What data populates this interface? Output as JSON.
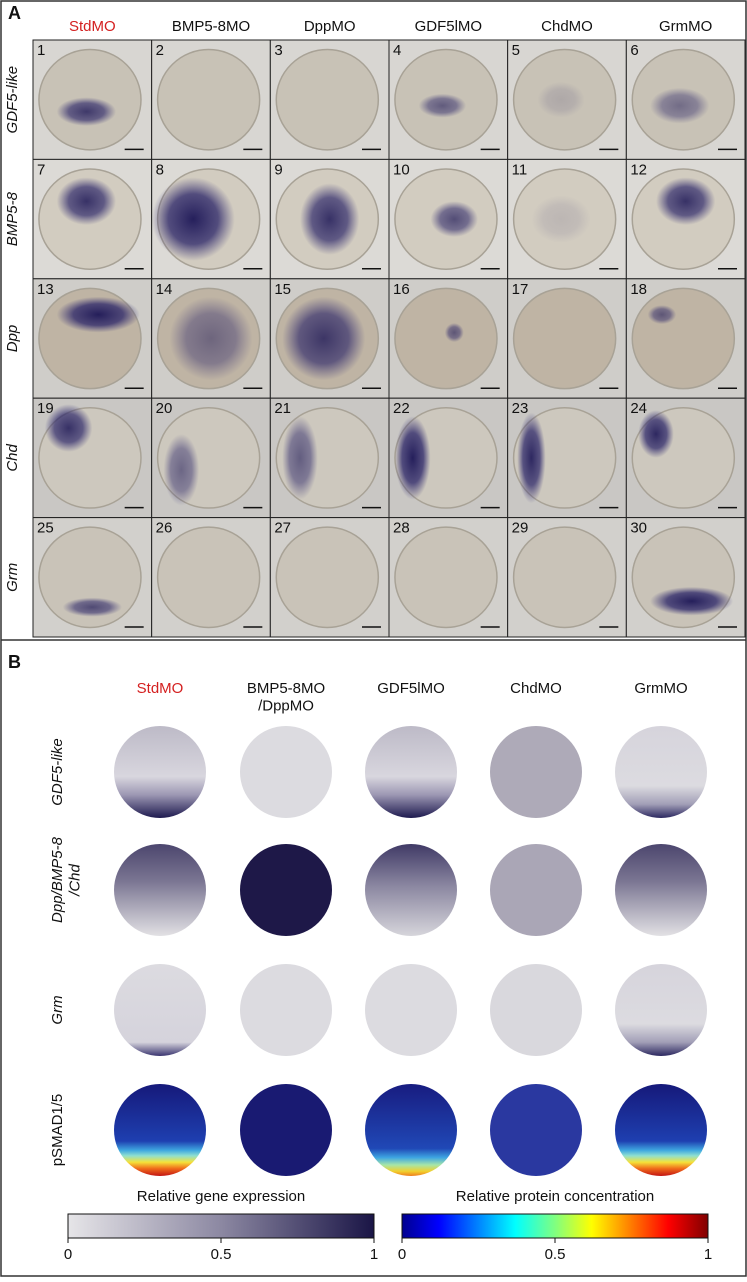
{
  "panel_a": {
    "label": "A",
    "columns": [
      "StdMO",
      "BMP5-8MO",
      "DppMO",
      "GDF5lMO",
      "ChdMO",
      "GrmMO"
    ],
    "rows": [
      "GDF5-like",
      "BMP5-8",
      "Dpp",
      "Chd",
      "Grm"
    ],
    "cell_numbers": [
      1,
      2,
      3,
      4,
      5,
      6,
      7,
      8,
      9,
      10,
      11,
      12,
      13,
      14,
      15,
      16,
      17,
      18,
      19,
      20,
      21,
      22,
      23,
      24,
      25,
      26,
      27,
      28,
      29,
      30
    ]
  },
  "panel_b": {
    "label": "B",
    "columns": [
      "StdMO",
      "BMP5-8MO\n/DppMO",
      "GDF5lMO",
      "ChdMO",
      "GrmMO"
    ],
    "rows": [
      "GDF5-like",
      "Dpp/BMP5-8\n/Chd",
      "Grm",
      "pSMAD1/5"
    ],
    "colorbars": [
      {
        "title": "Relative gene expression",
        "ticks": [
          "0",
          "0.5",
          "1"
        ]
      },
      {
        "title": "Relative protein concentration",
        "ticks": [
          "0",
          "0.5",
          "1"
        ]
      }
    ]
  }
}
